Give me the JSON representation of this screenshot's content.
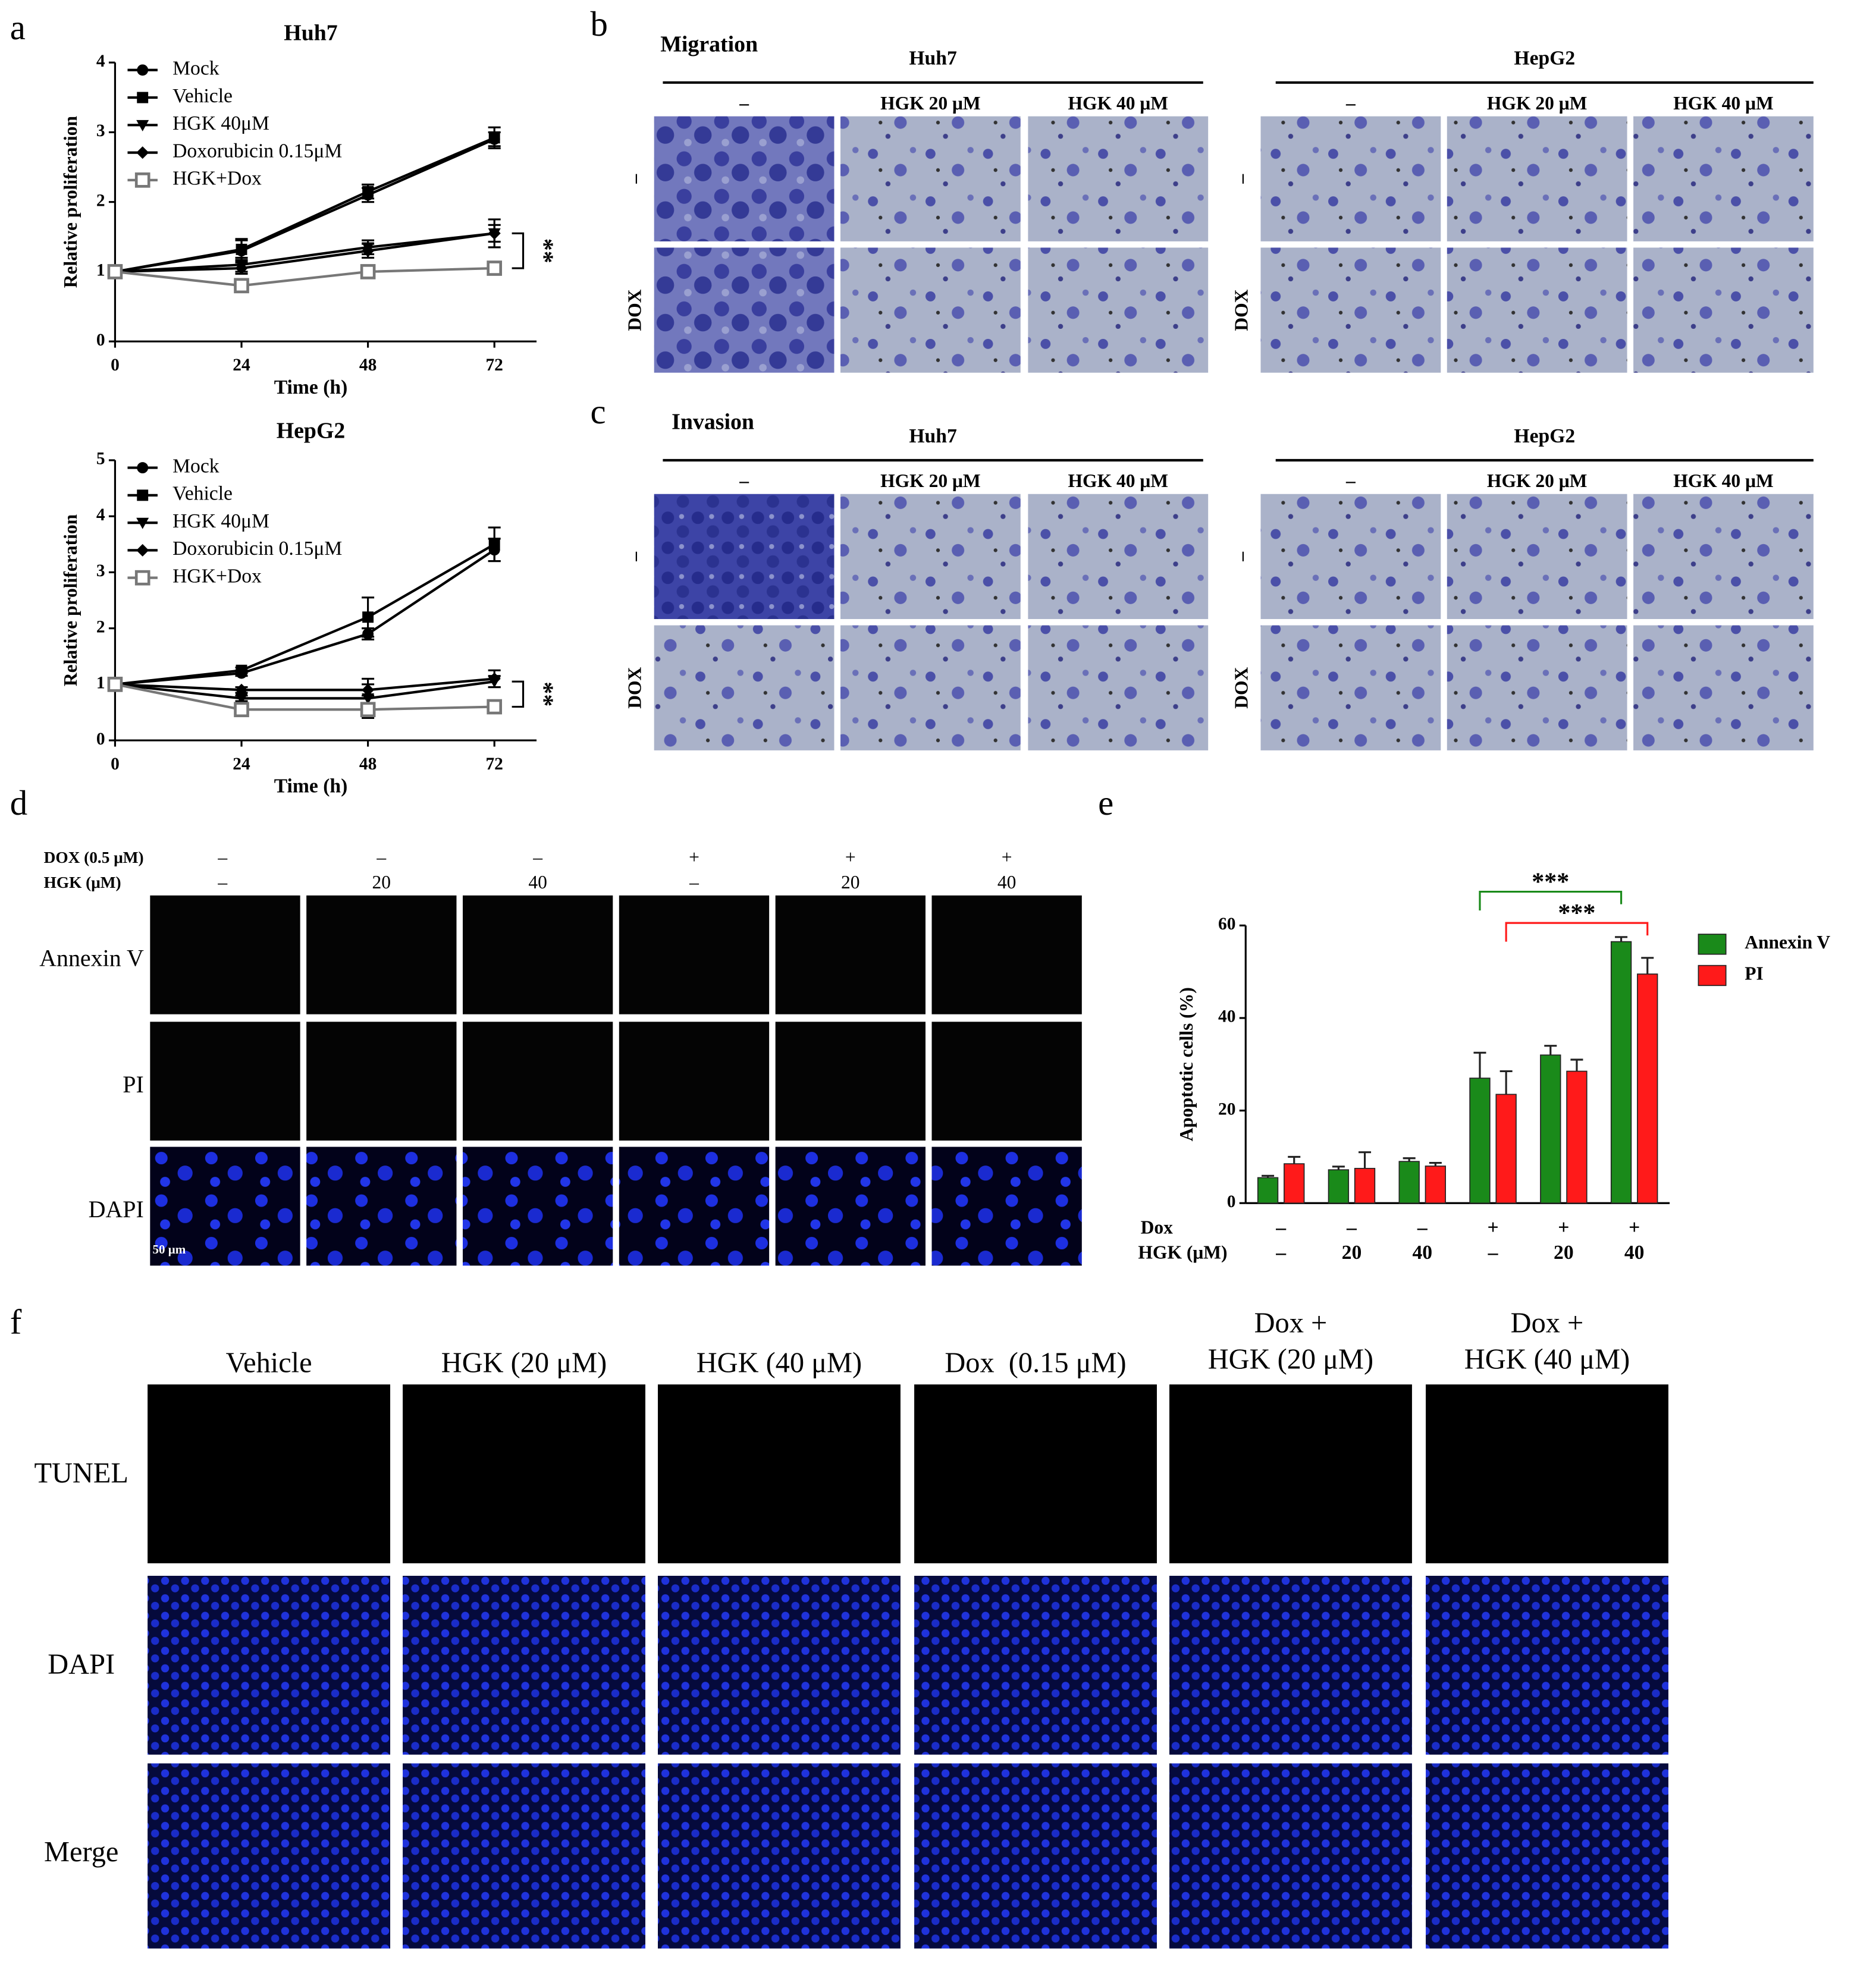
{
  "panel_labels": [
    "a",
    "b",
    "c",
    "d",
    "e",
    "f"
  ],
  "chart_data": [
    {
      "type": "line",
      "title": "Huh7",
      "xlabel": "Time (h)",
      "ylabel": "Relative  proliferation",
      "x": [
        0,
        24,
        48,
        72
      ],
      "xlim": [
        0,
        80
      ],
      "xticks": [
        0,
        24,
        48,
        72
      ],
      "ylim": [
        0,
        4
      ],
      "yticks": [
        0,
        1,
        2,
        3,
        4
      ],
      "series": [
        {
          "name": "Mock",
          "color": "#000000",
          "marker": "circle",
          "values": [
            1,
            1.3,
            2.1,
            2.9
          ],
          "errors": [
            0,
            0.15,
            0.1,
            0.1
          ]
        },
        {
          "name": "Vehicle",
          "color": "#000000",
          "marker": "square",
          "values": [
            1,
            1.32,
            2.15,
            2.92
          ],
          "errors": [
            0,
            0.15,
            0.1,
            0.15
          ]
        },
        {
          "name": "HGK 40μM",
          "color": "#000000",
          "marker": "triangle-down",
          "values": [
            1,
            1.1,
            1.35,
            1.55
          ],
          "errors": [
            0,
            0.1,
            0.1,
            0.2
          ]
        },
        {
          "name": "Doxorubicin 0.15μM",
          "color": "#000000",
          "marker": "diamond",
          "values": [
            1,
            1.05,
            1.3,
            1.55
          ],
          "errors": [
            0,
            0.08,
            0.1,
            0.12
          ]
        },
        {
          "name": "HGK+Dox",
          "color": "#777777",
          "marker": "open-square",
          "values": [
            1,
            0.8,
            1.0,
            1.05
          ],
          "errors": [
            0,
            0.05,
            0.05,
            0.08
          ]
        }
      ],
      "annotation": "**"
    },
    {
      "type": "line",
      "title": "HepG2",
      "xlabel": "Time (h)",
      "ylabel": "Relative  proliferation",
      "x": [
        0,
        24,
        48,
        72
      ],
      "xlim": [
        0,
        80
      ],
      "xticks": [
        0,
        24,
        48,
        72
      ],
      "ylim": [
        0,
        5
      ],
      "yticks": [
        0,
        1,
        2,
        3,
        4,
        5
      ],
      "series": [
        {
          "name": "Mock",
          "color": "#000000",
          "marker": "circle",
          "values": [
            1,
            1.2,
            1.9,
            3.4
          ],
          "errors": [
            0,
            0.05,
            0.1,
            0.2
          ]
        },
        {
          "name": "Vehicle",
          "color": "#000000",
          "marker": "square",
          "values": [
            1,
            1.25,
            2.2,
            3.5
          ],
          "errors": [
            0,
            0.05,
            0.35,
            0.3
          ]
        },
        {
          "name": "HGK 40μM",
          "color": "#000000",
          "marker": "triangle-down",
          "values": [
            1,
            0.75,
            0.75,
            1.05
          ],
          "errors": [
            0,
            0.05,
            0.35,
            0.1
          ]
        },
        {
          "name": "Doxorubicin 0.15μM",
          "color": "#000000",
          "marker": "diamond",
          "values": [
            1,
            0.9,
            0.9,
            1.1
          ],
          "errors": [
            0,
            0.05,
            0.1,
            0.15
          ]
        },
        {
          "name": "HGK+Dox",
          "color": "#777777",
          "marker": "open-square",
          "values": [
            1,
            0.55,
            0.55,
            0.6
          ],
          "errors": [
            0,
            0.05,
            0.05,
            0.08
          ]
        }
      ],
      "annotation": "**"
    },
    {
      "type": "bar",
      "ylabel": "Apoptotic cells (%)",
      "ylim": [
        0,
        60
      ],
      "yticks": [
        0,
        20,
        40,
        60
      ],
      "category_rows": [
        {
          "name": "Dox",
          "labels": [
            "–",
            "–",
            "–",
            "+",
            "+",
            "+"
          ]
        },
        {
          "name": "HGK (μM)",
          "labels": [
            "–",
            "20",
            "40",
            "–",
            "20",
            "40"
          ]
        }
      ],
      "series": [
        {
          "name": "Annexin V",
          "color": "#1a8a1a",
          "values": [
            5.5,
            7.2,
            9,
            27,
            32,
            56.5
          ],
          "errors": [
            0.4,
            0.7,
            0.7,
            5.5,
            2,
            1
          ]
        },
        {
          "name": "PI",
          "color": "#ff1a1a",
          "values": [
            8.5,
            7.5,
            8,
            23.5,
            28.5,
            49.5
          ],
          "errors": [
            1.5,
            3.5,
            0.7,
            5,
            2.5,
            3.5
          ]
        }
      ],
      "annotations": [
        {
          "text": "***",
          "color": "#1a8a1a"
        },
        {
          "text": "***",
          "color": "#ff1a1a"
        }
      ]
    }
  ],
  "panel_b": {
    "title": "Migration",
    "groups": [
      {
        "name": "Huh7",
        "columns": [
          "–",
          "HGK 20 μM",
          "HGK 40 μM"
        ],
        "rows": [
          "–",
          "DOX"
        ]
      },
      {
        "name": "HepG2",
        "columns": [
          "–",
          "HGK 20 μM",
          "HGK 40 μM"
        ],
        "rows": [
          "–",
          "DOX"
        ]
      }
    ]
  },
  "panel_c": {
    "title": "Invasion",
    "groups": [
      {
        "name": "Huh7",
        "columns": [
          "–",
          "HGK 20 μM",
          "HGK 40 μM"
        ],
        "rows": [
          "–",
          "DOX"
        ]
      },
      {
        "name": "HepG2",
        "columns": [
          "–",
          "HGK 20 μM",
          "HGK 40 μM"
        ],
        "rows": [
          "–",
          "DOX"
        ]
      }
    ]
  },
  "panel_d": {
    "conditions": [
      {
        "label": "DOX (0.5 μM)",
        "values": [
          "–",
          "–",
          "–",
          "+",
          "+",
          "+"
        ]
      },
      {
        "label": "HGK (μM)",
        "values": [
          "–",
          "20",
          "40",
          "–",
          "20",
          "40"
        ]
      }
    ],
    "rows": [
      "Annexin V",
      "PI",
      "DAPI"
    ],
    "scale_bar": "50 μm"
  },
  "panel_f": {
    "columns": [
      [
        "Vehicle"
      ],
      [
        "HGK (20 μM)"
      ],
      [
        "HGK (40 μM)"
      ],
      [
        "Dox  (0.15 μM)"
      ],
      [
        "Dox +",
        "HGK (20 μM)"
      ],
      [
        "Dox +",
        "HGK (40 μM)"
      ]
    ],
    "rows": [
      "TUNEL",
      "DAPI",
      "Merge"
    ]
  }
}
